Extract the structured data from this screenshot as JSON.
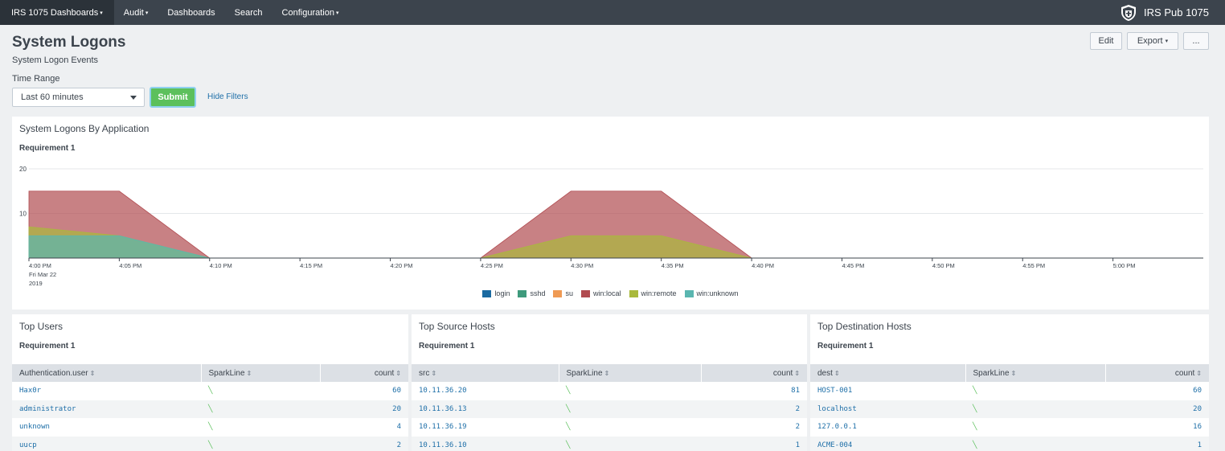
{
  "nav": {
    "items": [
      {
        "label": "IRS 1075 Dashboards",
        "caret": "▾"
      },
      {
        "label": "Audit",
        "caret": "▾"
      },
      {
        "label": "Dashboards",
        "caret": ""
      },
      {
        "label": "Search",
        "caret": ""
      },
      {
        "label": "Configuration",
        "caret": "▾"
      }
    ],
    "brand": "IRS Pub 1075"
  },
  "header": {
    "title": "System Logons",
    "description": "System Logon Events",
    "edit_label": "Edit",
    "export_label": "Export",
    "export_caret": "▾",
    "more_label": "..."
  },
  "filters": {
    "time_label": "Time Range",
    "time_value": "Last 60 minutes",
    "submit_label": "Submit",
    "hide_label": "Hide Filters"
  },
  "chart_panel": {
    "title": "System Logons By Application",
    "subtitle": "Requirement 1"
  },
  "chart_data": {
    "type": "area",
    "title": "System Logons By Application",
    "xlabel": "",
    "ylabel": "",
    "ylim": [
      0,
      20
    ],
    "yticks": [
      "10",
      "20"
    ],
    "x_ticks": [
      "4:00 PM",
      "4:05 PM",
      "4:10 PM",
      "4:15 PM",
      "4:20 PM",
      "4:25 PM",
      "4:30 PM",
      "4:35 PM",
      "4:40 PM",
      "4:45 PM",
      "4:50 PM",
      "4:55 PM",
      "5:00 PM"
    ],
    "x_first_extra": [
      "Fri Mar 22",
      "2019"
    ],
    "x": [
      0,
      1,
      2,
      3,
      4,
      5,
      6,
      7,
      8,
      9,
      10,
      11,
      12
    ],
    "series": [
      {
        "name": "login",
        "color": "#1a6aa1",
        "values": [
          0,
          0,
          0,
          0,
          0,
          0,
          0,
          0,
          0,
          0,
          0,
          0,
          0
        ]
      },
      {
        "name": "sshd",
        "color": "#3e9a7c",
        "values": [
          0,
          0,
          0,
          0,
          0,
          0,
          0,
          0,
          0,
          0,
          0,
          0,
          0
        ]
      },
      {
        "name": "su",
        "color": "#ef9a54",
        "values": [
          0,
          0,
          0,
          0,
          0,
          0,
          0,
          0,
          0,
          0,
          0,
          0,
          0
        ]
      },
      {
        "name": "win:local",
        "color": "#b14b50",
        "values": [
          15,
          15,
          0,
          0,
          0,
          0,
          15,
          15,
          0,
          0,
          0,
          0,
          0
        ]
      },
      {
        "name": "win:remote",
        "color": "#a9b93c",
        "values": [
          7,
          5,
          0,
          0,
          0,
          0,
          5,
          5,
          0,
          0,
          0,
          0,
          0
        ]
      },
      {
        "name": "win:unknown",
        "color": "#5ab6b0",
        "values": [
          5,
          5,
          0,
          0,
          0,
          0,
          0,
          0,
          0,
          0,
          0,
          0,
          0
        ]
      }
    ],
    "legend_position": "bottom"
  },
  "tables": [
    {
      "title": "Top Users",
      "subtitle": "Requirement 1",
      "columns": [
        "Authentication.user",
        "SparkLine",
        "count"
      ],
      "rows": [
        {
          "key": "Hax0r",
          "spark": "╲",
          "count": "60"
        },
        {
          "key": "administrator",
          "spark": "╲",
          "count": "20"
        },
        {
          "key": "unknown",
          "spark": "╲",
          "count": "4"
        },
        {
          "key": "uucp",
          "spark": "╲",
          "count": "2"
        }
      ]
    },
    {
      "title": "Top Source Hosts",
      "subtitle": "Requirement 1",
      "columns": [
        "src",
        "SparkLine",
        "count"
      ],
      "rows": [
        {
          "key": "10.11.36.20",
          "spark": "╲",
          "count": "81"
        },
        {
          "key": "10.11.36.13",
          "spark": "╲",
          "count": "2"
        },
        {
          "key": "10.11.36.19",
          "spark": "╲",
          "count": "2"
        },
        {
          "key": "10.11.36.10",
          "spark": "╲",
          "count": "1"
        }
      ]
    },
    {
      "title": "Top Destination Hosts",
      "subtitle": "Requirement 1",
      "columns": [
        "dest",
        "SparkLine",
        "count"
      ],
      "rows": [
        {
          "key": "HOST-001",
          "spark": "╲",
          "count": "60"
        },
        {
          "key": "localhost",
          "spark": "╲",
          "count": "20"
        },
        {
          "key": "127.0.0.1",
          "spark": "╲",
          "count": "16"
        },
        {
          "key": "ACME-004",
          "spark": "╲",
          "count": "1"
        }
      ]
    }
  ],
  "sort_icon": "⇕",
  "colors": {
    "nav_bg": "#3c444d",
    "accent": "#1e6fa8",
    "submit": "#5cc05c"
  }
}
